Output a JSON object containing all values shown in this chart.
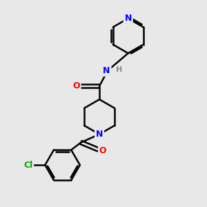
{
  "background_color": "#e8e8e8",
  "atom_colors": {
    "N": "#0000FF",
    "O": "#FF0000",
    "Cl": "#00AA00",
    "C": "#000000",
    "H": "#888888"
  },
  "bond_color": "#000000",
  "bond_width": 1.8,
  "figsize": [
    3.0,
    3.0
  ],
  "dpi": 100
}
